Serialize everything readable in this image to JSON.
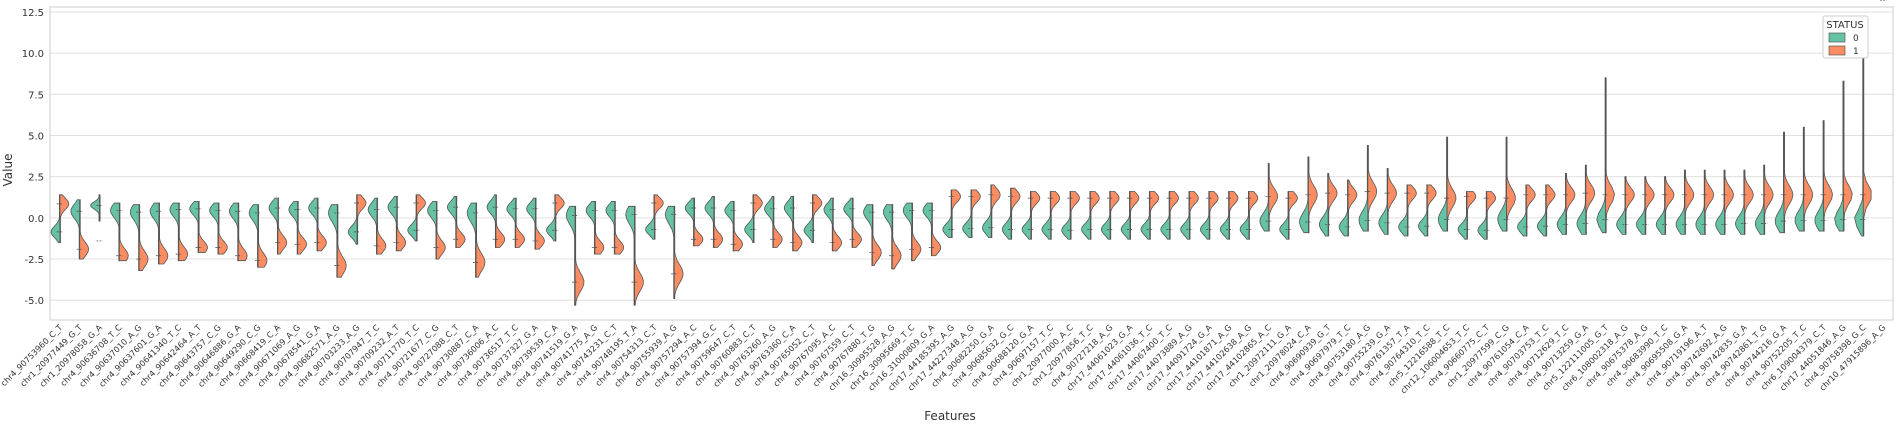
{
  "chart_data": {
    "type": "violin",
    "xlabel": "Features",
    "ylabel": "Value",
    "ylim": [
      -6.2,
      12.8
    ],
    "yticks": [
      -5.0,
      -2.5,
      0.0,
      2.5,
      5.0,
      7.5,
      10.0,
      12.5
    ],
    "grid": true,
    "split": true,
    "legend": {
      "title": "STATUS",
      "placement": "top-right",
      "entries": [
        {
          "label": "0",
          "color": "#66c2a5"
        },
        {
          "label": "1",
          "color": "#fc8d62"
        }
      ]
    },
    "categories": [
      "chr4_90753960_C_T",
      "chr1_20977449_G_T",
      "chr1_20978058_G_A",
      "chr4_90636708_T_C",
      "chr4_90637010_A_G",
      "chr4_90637601_G_A",
      "chr4_90641340_T_C",
      "chr4_90642464_A_T",
      "chr4_90643757_C_G",
      "chr4_90646886_G_A",
      "chr4_90649290_C_G",
      "chr4_90668419_C_A",
      "chr4_90671069_A_G",
      "chr4_90678541_G_A",
      "chr4_90682571_A_G",
      "chr4_90703233_A_G",
      "chr4_90707947_T_C",
      "chr4_90709232_A_T",
      "chr4_90711770_T_C",
      "chr4_90721677_C_G",
      "chr4_90727088_C_T",
      "chr4_90730887_C_A",
      "chr4_90736006_A_C",
      "chr4_90736517_T_C",
      "chr4_90737327_G_A",
      "chr4_90739539_C_A",
      "chr4_90741519_G_A",
      "chr4_90741775_A_G",
      "chr4_90743231_C_T",
      "chr4_90748195_T_A",
      "chr4_90754313_C_T",
      "chr4_90755939_A_G",
      "chr4_90757294_A_C",
      "chr4_90757394_G_C",
      "chr4_90759647_C_T",
      "chr4_90760883_C_T",
      "chr4_90763260_A_G",
      "chr4_90763360_C_A",
      "chr4_90765052_C_T",
      "chr4_90767095_A_C",
      "chr4_90767559_C_T",
      "chr4_90767880_T_G",
      "chr16_30995528_A_G",
      "chr16_30995669_T_C",
      "chr16_31000809_G_A",
      "chr17_44185395_A_G",
      "chr17_44227348_A_G",
      "chr4_90682250_G_A",
      "chr4_90685632_G_C",
      "chr4_90688120_G_A",
      "chr4_90697157_T_C",
      "chr1_20977000_A_C",
      "chr1_20977856_T_C",
      "chr4_90727218_A_G",
      "chr17_44061023_G_A",
      "chr17_44061036_T_C",
      "chr17_44067400_T_C",
      "chr17_44073889_A_G",
      "chr17_44091724_G_A",
      "chr17_44101871_A_G",
      "chr17_44102638_A_G",
      "chr17_44102865_A_C",
      "chr1_20972111_G_A",
      "chr1_20978024_C_A",
      "chr4_90690939_G_T",
      "chr4_90697979_T_C",
      "chr4_90753180_A_G",
      "chr4_90755239_G_A",
      "chr4_90761357_T_A",
      "chr4_90764310_T_C",
      "chr5_12216588_T_C",
      "chr12_106004653_T_C",
      "chr4_90660775_C_T",
      "chr1_20977599_C_G",
      "chr4_90761054_C_A",
      "chr4_90703753_T_C",
      "chr4_90712629_T_C",
      "chr4_90713259_G_A",
      "chr5_122111005_G_T",
      "chr6_108002318_A_G",
      "chr4_90675378_A_G",
      "chr4_90683990_T_C",
      "chr4_90695508_G_A",
      "chr4_90719196_A_T",
      "chr4_90742692_A_G",
      "chr4_90742835_G_A",
      "chr4_90742861_T_G",
      "chr4_90744216_G_A",
      "chr4_90752205_T_C",
      "chr6_109004379_C_T",
      "chr17_44051846_A_G",
      "chr4_90758398_G_C",
      "chr10_47915896_A_G"
    ],
    "series": [
      {
        "name": "0",
        "medians": [
          -0.85,
          0.4,
          0.75,
          0.45,
          0.35,
          0.4,
          0.5,
          0.55,
          0.45,
          0.4,
          0.3,
          0.6,
          0.5,
          0.6,
          0.3,
          -0.85,
          0.5,
          0.65,
          -0.75,
          0.45,
          0.65,
          0.3,
          0.65,
          0.55,
          0.55,
          -0.75,
          0.15,
          0.45,
          0.45,
          0.2,
          -0.7,
          0.2,
          0.6,
          0.6,
          0.45,
          -0.7,
          0.55,
          0.6,
          -0.75,
          0.5,
          0.55,
          0.35,
          0.35,
          0.45,
          0.45,
          -0.7,
          -0.65,
          -0.6,
          -0.7,
          -0.7,
          -0.7,
          -0.75,
          -0.7,
          -0.7,
          -0.7,
          -0.7,
          -0.7,
          -0.7,
          -0.7,
          -0.7,
          -0.7,
          -0.2,
          -0.7,
          -0.25,
          -0.4,
          -0.55,
          -0.15,
          -0.3,
          -0.55,
          -0.5,
          -0.1,
          -0.7,
          -0.75,
          -0.1,
          -0.55,
          -0.5,
          -0.4,
          -0.35,
          -0.1,
          -0.4,
          -0.4,
          -0.4,
          -0.4,
          -0.4,
          -0.4,
          -0.35,
          -0.35,
          -0.2,
          -0.15,
          -0.15,
          -0.1,
          -0.1
        ],
        "lows": [
          -1.5,
          -2.5,
          -0.2,
          -2.6,
          -3.2,
          -2.8,
          -2.6,
          -2.1,
          -2.2,
          -2.6,
          -3.0,
          -2.2,
          -2.2,
          -2.0,
          -3.6,
          -1.6,
          -2.2,
          -2.0,
          -1.4,
          -2.5,
          -1.8,
          -3.6,
          -1.8,
          -1.8,
          -1.9,
          -1.4,
          -5.3,
          -2.2,
          -2.2,
          -5.3,
          -1.3,
          -4.9,
          -1.7,
          -1.8,
          -2.0,
          -1.5,
          -1.8,
          -2.0,
          -1.5,
          -2.0,
          -1.8,
          -2.9,
          -3.1,
          -2.6,
          -2.3,
          -1.2,
          -1.2,
          -1.2,
          -1.3,
          -1.3,
          -1.3,
          -1.3,
          -1.3,
          -1.3,
          -1.3,
          -1.3,
          -1.3,
          -1.3,
          -1.3,
          -1.3,
          -1.3,
          -0.8,
          -1.3,
          -0.9,
          -1.1,
          -1.1,
          -0.8,
          -1.0,
          -1.1,
          -1.1,
          -0.8,
          -1.3,
          -1.3,
          -0.8,
          -1.1,
          -1.1,
          -1.0,
          -1.0,
          -0.9,
          -1.0,
          -1.0,
          -1.0,
          -1.0,
          -1.0,
          -1.0,
          -1.0,
          -1.0,
          -0.9,
          -0.8,
          -0.8,
          -0.8,
          -1.1
        ],
        "highs": [
          1.4,
          1.1,
          1.4,
          0.9,
          0.8,
          0.9,
          0.9,
          1.0,
          0.9,
          0.9,
          0.8,
          1.2,
          1.0,
          1.2,
          0.8,
          1.4,
          1.2,
          1.3,
          1.4,
          1.0,
          1.3,
          0.9,
          1.4,
          1.2,
          1.2,
          1.4,
          0.7,
          1.0,
          1.0,
          0.7,
          1.4,
          0.7,
          1.2,
          1.3,
          1.0,
          1.4,
          1.3,
          1.3,
          1.4,
          1.2,
          1.2,
          0.8,
          0.8,
          0.9,
          0.9,
          1.7,
          1.7,
          2.0,
          1.8,
          1.6,
          1.6,
          1.6,
          1.6,
          1.6,
          1.6,
          1.6,
          1.6,
          1.6,
          1.6,
          1.6,
          1.6,
          3.3,
          1.6,
          3.7,
          2.7,
          2.3,
          4.4,
          3.0,
          2.0,
          2.0,
          4.9,
          1.6,
          1.6,
          4.9,
          2.0,
          2.0,
          2.7,
          3.2,
          8.5,
          2.5,
          2.5,
          2.5,
          2.9,
          2.9,
          2.9,
          2.9,
          3.2,
          5.2,
          5.5,
          5.9,
          8.3,
          12.2
        ]
      },
      {
        "name": "1",
        "medians": [
          0.85,
          -1.9,
          -1.4,
          -2.3,
          -2.5,
          -2.3,
          -2.2,
          -1.8,
          -1.8,
          -2.3,
          -2.6,
          -1.5,
          -1.6,
          -1.5,
          -2.9,
          0.9,
          -1.7,
          -1.5,
          0.9,
          -1.8,
          -1.3,
          -2.7,
          -1.3,
          -1.3,
          -1.4,
          0.9,
          -3.9,
          -1.8,
          -1.8,
          -3.9,
          0.9,
          -3.4,
          -1.3,
          -1.3,
          -1.6,
          0.9,
          -1.3,
          -1.5,
          0.9,
          -1.5,
          -1.3,
          -2.1,
          -2.3,
          -1.9,
          -1.8,
          1.3,
          1.3,
          1.4,
          1.3,
          1.2,
          1.2,
          1.2,
          1.2,
          1.2,
          1.2,
          1.2,
          1.2,
          1.2,
          1.2,
          1.2,
          1.2,
          1.3,
          1.2,
          1.4,
          1.5,
          1.4,
          1.6,
          1.5,
          1.5,
          1.5,
          1.2,
          1.3,
          1.2,
          1.2,
          1.4,
          1.4,
          1.4,
          1.5,
          1.4,
          1.4,
          1.4,
          1.4,
          1.4,
          1.4,
          1.4,
          1.4,
          1.4,
          1.4,
          1.4,
          1.4,
          1.4,
          1.4
        ]
      }
    ]
  }
}
